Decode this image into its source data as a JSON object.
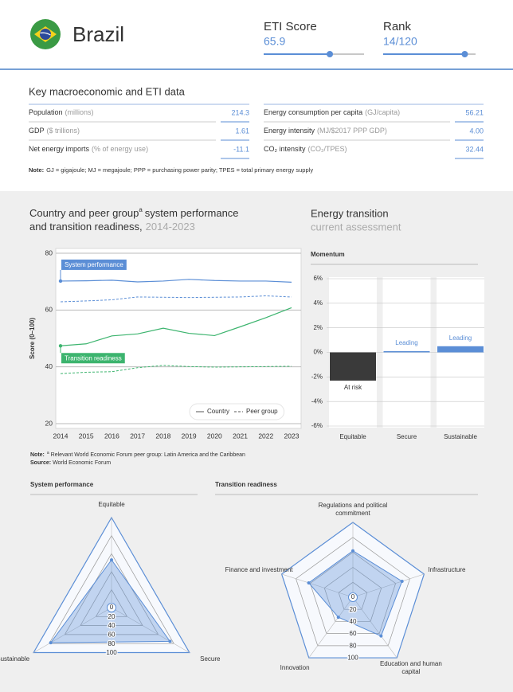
{
  "header": {
    "country": "Brazil",
    "eti_score_label": "ETI Score",
    "eti_score": 65.9,
    "eti_score_lim": [
      0,
      100
    ],
    "rank_label": "Rank",
    "rank": {
      "value": 14,
      "label": "14/120"
    },
    "rank_total": 120
  },
  "key_data": {
    "title": "Key macroeconomic and ETI data",
    "rows": [
      [
        {
          "label": "Population",
          "unit": "(millions)",
          "value": "214.3"
        },
        {
          "label": "Energy consumption per capita",
          "unit": "(GJ/capita)",
          "value": "56.21"
        }
      ],
      [
        {
          "label": "GDP",
          "unit": "($ trillions)",
          "value": "1.61"
        },
        {
          "label": "Energy intensity",
          "unit": "(MJ/$2017 PPP GDP)",
          "value": "4.00"
        }
      ],
      [
        {
          "label": "Net energy imports",
          "unit": "(% of energy use)",
          "value": "-11.1"
        },
        {
          "label": "CO₂ intensity",
          "unit": "(CO₂/TPES)",
          "value": "32.44"
        }
      ]
    ],
    "note": {
      "label": "Note:",
      "text": "GJ = gigajoule; MJ = megajoule; PPP = purchasing power parity; TPES = total primary energy supply"
    }
  },
  "chart_data": [
    {
      "type": "line",
      "title_part1": "Country and peer group",
      "title_superscript": "a",
      "title_part2": "system performance",
      "title_part3": "and transition readiness,",
      "subtitle": "2014-2023",
      "y_label": "Score (0–100)",
      "x": [
        2014,
        2015,
        2016,
        2017,
        2018,
        2019,
        2020,
        2021,
        2022,
        2023
      ],
      "xlim": [
        2014,
        2023
      ],
      "xticks": [
        2014,
        2015,
        2016,
        2017,
        2018,
        2019,
        2020,
        2021,
        2022,
        2023
      ],
      "ylim": [
        20,
        80
      ],
      "yticks": [
        20,
        40,
        60,
        80
      ],
      "grid": true,
      "series": [
        {
          "name": "System performance",
          "color": "#5b8ed6",
          "values": [
            70.2,
            70.3,
            70.5,
            69.9,
            70.2,
            70.8,
            70.4,
            70.2,
            70.2,
            69.8
          ],
          "peer_values": [
            62.9,
            63.2,
            63.6,
            64.6,
            64.5,
            64.4,
            64.5,
            64.6,
            65.0,
            64.6
          ]
        },
        {
          "name": "Transition readiness",
          "color": "#3cb46e",
          "values": [
            47.4,
            48.1,
            50.9,
            51.6,
            53.6,
            51.8,
            51.0,
            54.1,
            57.3,
            60.8
          ],
          "peer_values": [
            37.6,
            38.1,
            38.3,
            39.7,
            40.5,
            40.1,
            39.9,
            40.0,
            40.1,
            40.2
          ]
        }
      ],
      "legend": {
        "country": "Country",
        "peer_group": "Peer group"
      },
      "notes": [
        {
          "label": "Note:",
          "superscript": "a",
          "text": "Relevant World Economic Forum peer group: Latin America and the Caribbean"
        },
        {
          "label": "Source:",
          "text": "World Economic Forum"
        }
      ]
    },
    {
      "type": "bar",
      "title": "Energy transition",
      "subtitle": "current assessment",
      "panel_title": "Momentum",
      "categories": [
        "Equitable",
        "Secure",
        "Sustainable"
      ],
      "values": [
        -2.3,
        0.1,
        0.5
      ],
      "colors": [
        "#3a3a3a",
        "#5b8ed6",
        "#5b8ed6"
      ],
      "annotations": [
        "At risk",
        "Leading",
        "Leading"
      ],
      "ylim": [
        -6,
        6
      ],
      "yticks": [
        {
          "value": -6,
          "label": "-6%"
        },
        {
          "value": -4,
          "label": "-4%"
        },
        {
          "value": -2,
          "label": "-2%"
        },
        {
          "value": 0,
          "label": "0%"
        },
        {
          "value": 2,
          "label": "2%"
        },
        {
          "value": 4,
          "label": "4%"
        },
        {
          "value": 6,
          "label": "6%"
        }
      ]
    },
    {
      "type": "radar",
      "title": "System performance",
      "categories": [
        "Equitable",
        "Secure",
        "Sustainable"
      ],
      "values": [
        53,
        75,
        78
      ],
      "rlim": [
        0,
        100
      ],
      "rticks": [
        0,
        20,
        40,
        60,
        80,
        100
      ],
      "color": "#5b8ed6"
    },
    {
      "type": "radar",
      "title": "Transition readiness",
      "categories": [
        "Regulations and political commitment",
        "Infrastructure",
        "Education and human capital",
        "Innovation",
        "Finance and investment"
      ],
      "values": [
        62,
        69,
        64,
        33,
        62
      ],
      "rlim": [
        0,
        100
      ],
      "rticks": [
        0,
        20,
        40,
        60,
        80,
        100
      ],
      "color": "#5b8ed6"
    }
  ]
}
